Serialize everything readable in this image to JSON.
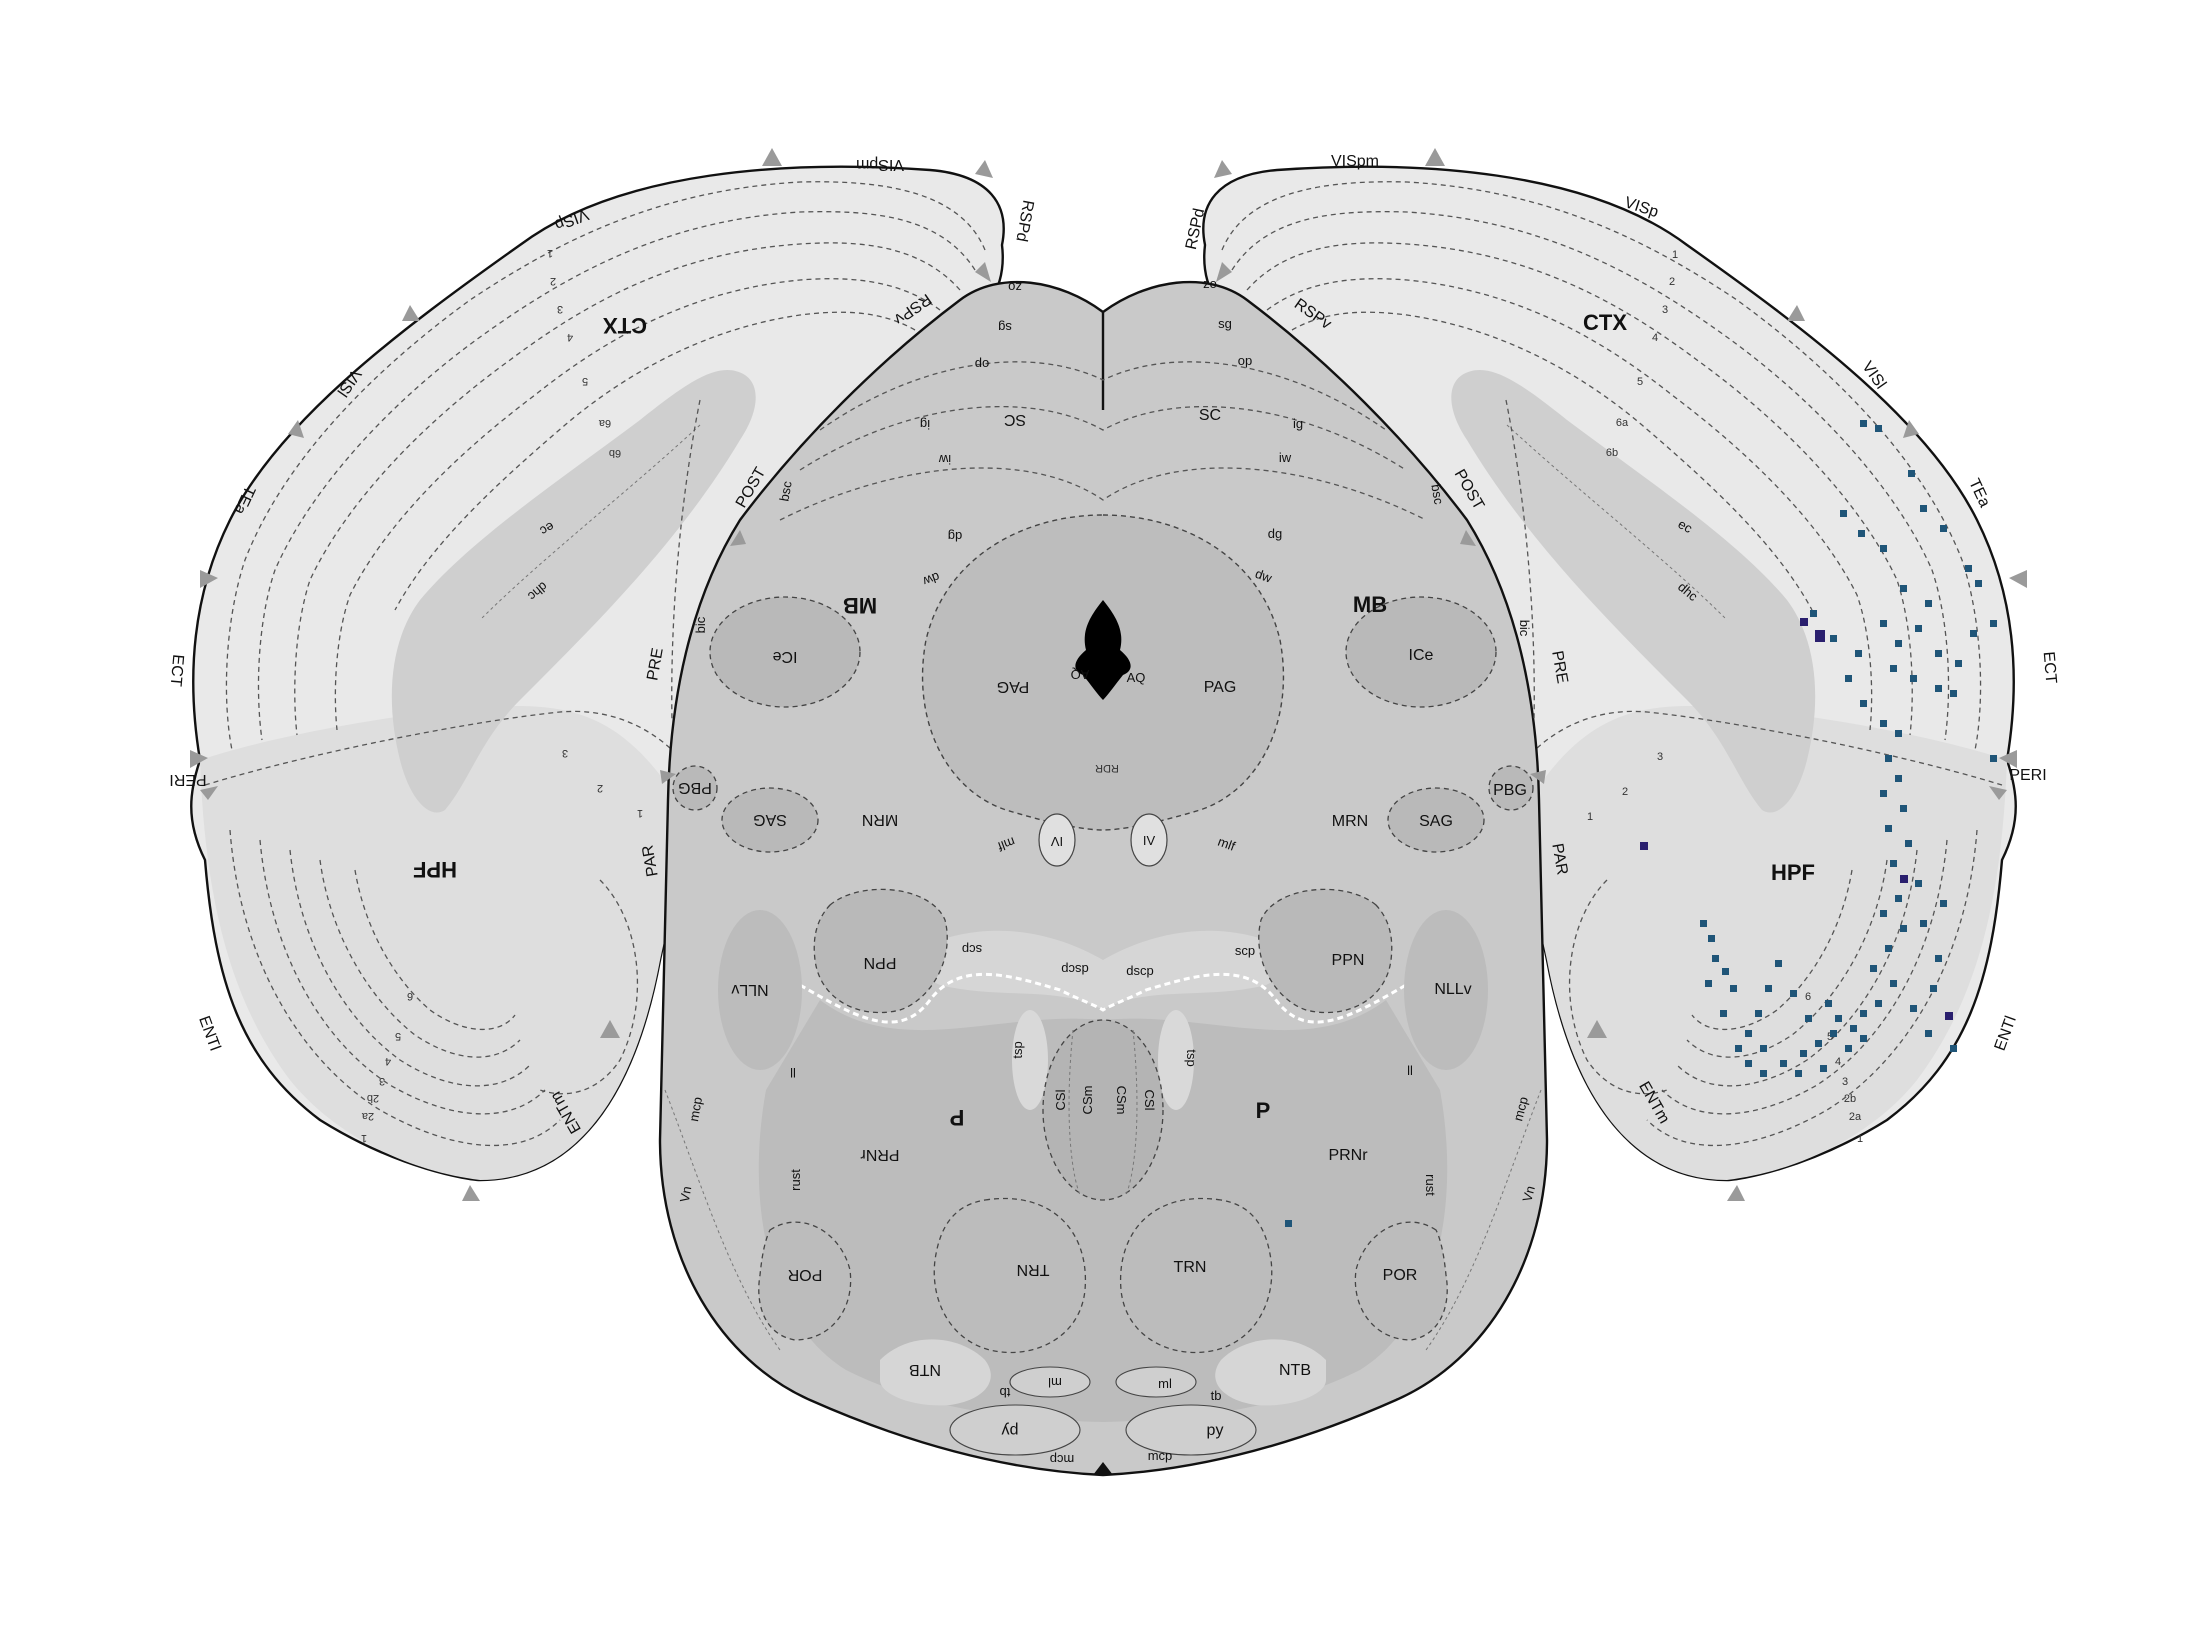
{
  "colors": {
    "cortex": "#e9e9e9",
    "cortex_deep": "#dedede",
    "midbrain": "#c9c9c9",
    "nucleus": "#b9b9b9",
    "tract": "#d6d6d6",
    "ventricle": "#000000",
    "outline": "#111111",
    "arrow": "#9a9a9a",
    "cell_marker": "#1f5578",
    "cell_marker_dark": "#2a1f6e"
  },
  "labels": {
    "left": {
      "visp": "VISp",
      "vispm": "VISpm",
      "rspd": "RSPd",
      "rspv": "RSPv",
      "visl": "VISl",
      "tea": "TEa",
      "ect": "ECT",
      "peri": "PERI",
      "entl": "ENTl",
      "entm": "ENTm",
      "par": "PAR",
      "pre": "PRE",
      "post": "POST",
      "ctx": "CTX",
      "hpf": "HPF",
      "mb": "MB",
      "ec": "ec",
      "dhc": "dhc",
      "bic": "bic",
      "bsc": "bsc",
      "zo": "zo",
      "sg": "sg",
      "op": "op",
      "ig": "ig",
      "iw": "iw",
      "dg": "dg",
      "dw": "dw",
      "sc": "SC",
      "ice": "ICe",
      "pag": "PAG",
      "aq": "AQ",
      "pbg": "PBG",
      "sag": "SAG",
      "mrn": "MRN",
      "mlf": "mlf",
      "iv": "IV",
      "scp": "scp",
      "ppn": "PPN",
      "dscp": "dscp",
      "nllv": "NLLv",
      "ll": "ll",
      "tsp": "tsp",
      "csl": "CSl",
      "csm": "CSm",
      "p": "P",
      "prnr": "PRNr",
      "rust": "rust",
      "por": "POR",
      "trn": "TRN",
      "ntb": "NTB",
      "ml": "ml",
      "tb": "tb",
      "py": "py",
      "mcp": "mcp",
      "vn": "Vn"
    },
    "right": {
      "visp": "VISp",
      "vispm": "VISpm",
      "rspd": "RSPd",
      "rspv": "RSPv",
      "visl": "VISl",
      "tea": "TEa",
      "ect": "ECT",
      "peri": "PERI",
      "entl": "ENTl",
      "entm": "ENTm",
      "par": "PAR",
      "pre": "PRE",
      "post": "POST",
      "ctx": "CTX",
      "hpf": "HPF",
      "mb": "MB",
      "ec": "ec",
      "dhc": "dhc",
      "bic": "bic",
      "bsc": "bsc",
      "zo": "zo",
      "sg": "sg",
      "op": "op",
      "ig": "ig",
      "iw": "iw",
      "dg": "dg",
      "dw": "dw",
      "sc": "SC",
      "ice": "ICe",
      "pag": "PAG",
      "aq": "AQ",
      "pbg": "PBG",
      "sag": "SAG",
      "mrn": "MRN",
      "mlf": "mlf",
      "iv": "IV",
      "scp": "scp",
      "ppn": "PPN",
      "nllv": "NLLv",
      "ll": "ll",
      "tsp": "tsp",
      "csl": "CSl",
      "csm": "CSm",
      "p": "P",
      "prnr": "PRNr",
      "rust": "rust",
      "por": "POR",
      "trn": "TRN",
      "ntb": "NTB",
      "ml": "ml",
      "tb": "tb",
      "py": "py",
      "mcp": "mcp",
      "vn": "Vn"
    },
    "midline": {
      "rdr": "RDR"
    },
    "cortical_layers": [
      "1",
      "2",
      "3",
      "4",
      "5",
      "6a",
      "6b"
    ],
    "ent_layers": [
      "1",
      "2a",
      "2b",
      "3",
      "4",
      "5",
      "6"
    ],
    "hpf_layers": [
      "1",
      "2",
      "3"
    ]
  }
}
